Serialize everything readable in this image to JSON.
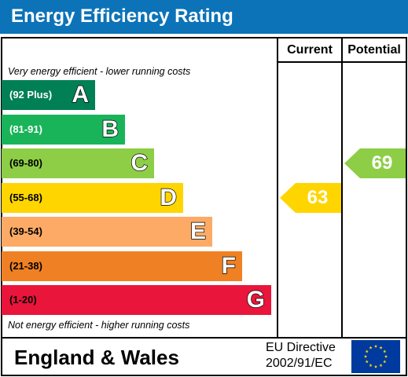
{
  "header": {
    "title": "Energy Efficiency Rating"
  },
  "columns": {
    "current": "Current",
    "potential": "Potential"
  },
  "captions": {
    "top": "Very energy efficient - lower running costs",
    "bottom": "Not energy efficient - higher running costs"
  },
  "bands": [
    {
      "letter": "A",
      "range": "(92 Plus)",
      "color": "#008054",
      "text_color": "#ffffff"
    },
    {
      "letter": "B",
      "range": "(81-91)",
      "color": "#19b459",
      "text_color": "#ffffff"
    },
    {
      "letter": "C",
      "range": "(69-80)",
      "color": "#8dce46",
      "text_color": "#000000"
    },
    {
      "letter": "D",
      "range": "(55-68)",
      "color": "#ffd500",
      "text_color": "#000000"
    },
    {
      "letter": "E",
      "range": "(39-54)",
      "color": "#fcaa65",
      "text_color": "#000000"
    },
    {
      "letter": "F",
      "range": "(21-38)",
      "color": "#ef8023",
      "text_color": "#000000"
    },
    {
      "letter": "G",
      "range": "(1-20)",
      "color": "#e9153b",
      "text_color": "#000000"
    }
  ],
  "ratings": {
    "current": {
      "value": "63",
      "band": "D",
      "color": "#ffd500"
    },
    "potential": {
      "value": "69",
      "band": "C",
      "color": "#8dce46"
    }
  },
  "footer": {
    "region": "England & Wales",
    "directive_line1": "EU Directive",
    "directive_line2": "2002/91/EC",
    "flag": {
      "icon": "eu-flag-icon",
      "background": "#003a9e",
      "star_color": "#ffdd00"
    }
  }
}
